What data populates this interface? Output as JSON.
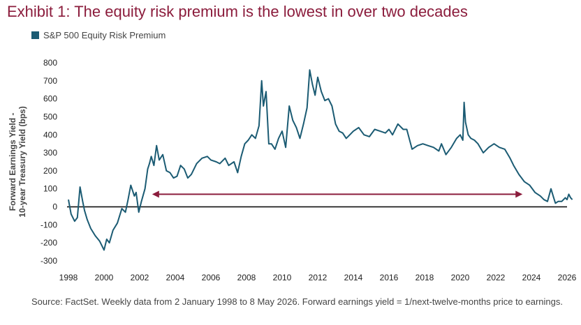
{
  "title": "Exhibit 1: The equity risk premium is the lowest in over two decades",
  "source_note": "Source: FactSet. Weekly data from 2 January 1998 to 8 May 2026. Forward earnings yield = 1/next-twelve-months price to earnings.",
  "colors": {
    "title": "#8b1c3c",
    "series": "#1b5b73",
    "arrow": "#8b1c3c",
    "zero_line": "#111111",
    "text": "#444444"
  },
  "chart_data": {
    "type": "line",
    "title": "Exhibit 1: The equity risk premium is the lowest in over two decades",
    "ylabel": "Forward Earnings Yield -\n10-year Treasury Yield (bps)",
    "xlabel": "",
    "legend": {
      "position": "top-left",
      "entries": [
        "S&P 500 Equity Risk Premium"
      ]
    },
    "xlim": [
      1998,
      2026.35
    ],
    "ylim": [
      -300,
      800
    ],
    "xticks": [
      1998,
      2000,
      2002,
      2004,
      2006,
      2008,
      2010,
      2012,
      2014,
      2016,
      2018,
      2020,
      2022,
      2024,
      2026
    ],
    "yticks": [
      -300,
      -200,
      -100,
      0,
      100,
      200,
      300,
      400,
      500,
      600,
      700,
      800
    ],
    "grid": false,
    "annotations": [
      {
        "type": "double-arrow",
        "x_start": 2002.7,
        "x_end": 2023.5,
        "y": 70
      }
    ],
    "series": [
      {
        "name": "S&P 500 Equity Risk Premium",
        "x": [
          1998.0,
          1998.15,
          1998.35,
          1998.5,
          1998.65,
          1998.8,
          1998.9,
          1999.05,
          1999.25,
          1999.5,
          1999.75,
          2000.0,
          2000.15,
          2000.3,
          2000.5,
          2000.75,
          2001.0,
          2001.2,
          2001.35,
          2001.5,
          2001.7,
          2001.8,
          2001.95,
          2002.1,
          2002.3,
          2002.45,
          2002.55,
          2002.65,
          2002.8,
          2002.95,
          2003.1,
          2003.3,
          2003.5,
          2003.7,
          2003.9,
          2004.1,
          2004.3,
          2004.5,
          2004.7,
          2004.9,
          2005.2,
          2005.5,
          2005.8,
          2006.0,
          2006.3,
          2006.5,
          2006.8,
          2007.0,
          2007.3,
          2007.5,
          2007.7,
          2007.9,
          2008.1,
          2008.3,
          2008.5,
          2008.7,
          2008.85,
          2008.95,
          2009.1,
          2009.25,
          2009.4,
          2009.6,
          2009.8,
          2010.0,
          2010.2,
          2010.4,
          2010.6,
          2010.8,
          2011.0,
          2011.2,
          2011.4,
          2011.55,
          2011.7,
          2011.85,
          2012.0,
          2012.2,
          2012.4,
          2012.6,
          2012.8,
          2013.0,
          2013.2,
          2013.4,
          2013.6,
          2013.8,
          2014.0,
          2014.3,
          2014.6,
          2014.9,
          2015.2,
          2015.5,
          2015.8,
          2016.0,
          2016.2,
          2016.5,
          2016.8,
          2017.0,
          2017.3,
          2017.6,
          2017.9,
          2018.2,
          2018.5,
          2018.8,
          2018.95,
          2019.2,
          2019.5,
          2019.8,
          2020.0,
          2020.15,
          2020.22,
          2020.3,
          2020.45,
          2020.6,
          2020.8,
          2021.0,
          2021.3,
          2021.6,
          2021.9,
          2022.2,
          2022.5,
          2022.8,
          2023.0,
          2023.3,
          2023.6,
          2023.9,
          2024.2,
          2024.5,
          2024.7,
          2024.9,
          2025.1,
          2025.25,
          2025.35,
          2025.5,
          2025.7,
          2025.9,
          2026.0,
          2026.1,
          2026.2,
          2026.3
        ],
        "y": [
          40,
          -40,
          -80,
          -60,
          110,
          30,
          -20,
          -70,
          -120,
          -160,
          -190,
          -240,
          -180,
          -200,
          -130,
          -90,
          -10,
          -30,
          40,
          120,
          60,
          80,
          -30,
          30,
          100,
          210,
          240,
          280,
          230,
          340,
          260,
          290,
          200,
          190,
          160,
          170,
          230,
          210,
          160,
          180,
          240,
          270,
          280,
          260,
          250,
          240,
          270,
          230,
          250,
          190,
          280,
          350,
          370,
          400,
          380,
          450,
          700,
          560,
          640,
          350,
          350,
          320,
          380,
          420,
          330,
          560,
          480,
          440,
          380,
          460,
          550,
          760,
          680,
          620,
          720,
          640,
          590,
          600,
          560,
          460,
          420,
          410,
          380,
          400,
          420,
          440,
          400,
          390,
          430,
          420,
          410,
          430,
          400,
          460,
          430,
          430,
          320,
          340,
          350,
          340,
          330,
          310,
          350,
          290,
          330,
          380,
          400,
          370,
          580,
          470,
          400,
          380,
          370,
          350,
          300,
          330,
          350,
          330,
          320,
          270,
          230,
          180,
          140,
          120,
          80,
          60,
          40,
          30,
          100,
          50,
          20,
          30,
          30,
          50,
          40,
          70,
          50,
          40
        ]
      }
    ]
  }
}
